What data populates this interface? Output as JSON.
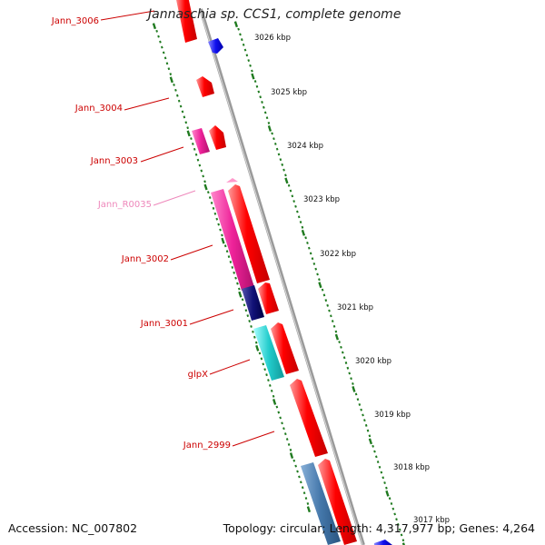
{
  "title": "Jannaschia sp. CCS1, complete genome",
  "footer": {
    "accession": "Accession: NC_007802",
    "topology": "Topology: circular; Length: 4,317,977 bp; Genes: 4,264"
  },
  "colors": {
    "backbone": "#8c8c8c",
    "tick_green": "#1f7a1f",
    "cds_red": "#ff0000",
    "label_red": "#cc0000",
    "label_pink": "#ee88bb",
    "blue": "#1010ee",
    "navy": "#111177",
    "magenta": "#ee2299",
    "cyan": "#22cccc",
    "steel": "#4477aa",
    "light_pink": "#ff99cc"
  },
  "scale_ticks": [
    {
      "kbp": 3026,
      "label": "3026 kbp"
    },
    {
      "kbp": 3025,
      "label": "3025 kbp"
    },
    {
      "kbp": 3024,
      "label": "3024 kbp"
    },
    {
      "kbp": 3023,
      "label": "3023 kbp"
    },
    {
      "kbp": 3022,
      "label": "3022 kbp"
    },
    {
      "kbp": 3021,
      "label": "3021 kbp"
    },
    {
      "kbp": 3020,
      "label": "3020 kbp"
    },
    {
      "kbp": 3019,
      "label": "3019 kbp"
    },
    {
      "kbp": 3018,
      "label": "3018 kbp"
    },
    {
      "kbp": 3017,
      "label": "3017 kbp"
    }
  ],
  "gene_labels": [
    {
      "name": "Jann_3006",
      "color": "label_red"
    },
    {
      "name": "Jann_3004",
      "color": "label_red"
    },
    {
      "name": "Jann_3003",
      "color": "label_red"
    },
    {
      "name": "Jann_R0035",
      "color": "label_pink"
    },
    {
      "name": "Jann_3002",
      "color": "label_red"
    },
    {
      "name": "Jann_3001",
      "color": "label_red"
    },
    {
      "name": "glpX",
      "color": "label_red"
    },
    {
      "name": "Jann_2999",
      "color": "label_red"
    }
  ]
}
